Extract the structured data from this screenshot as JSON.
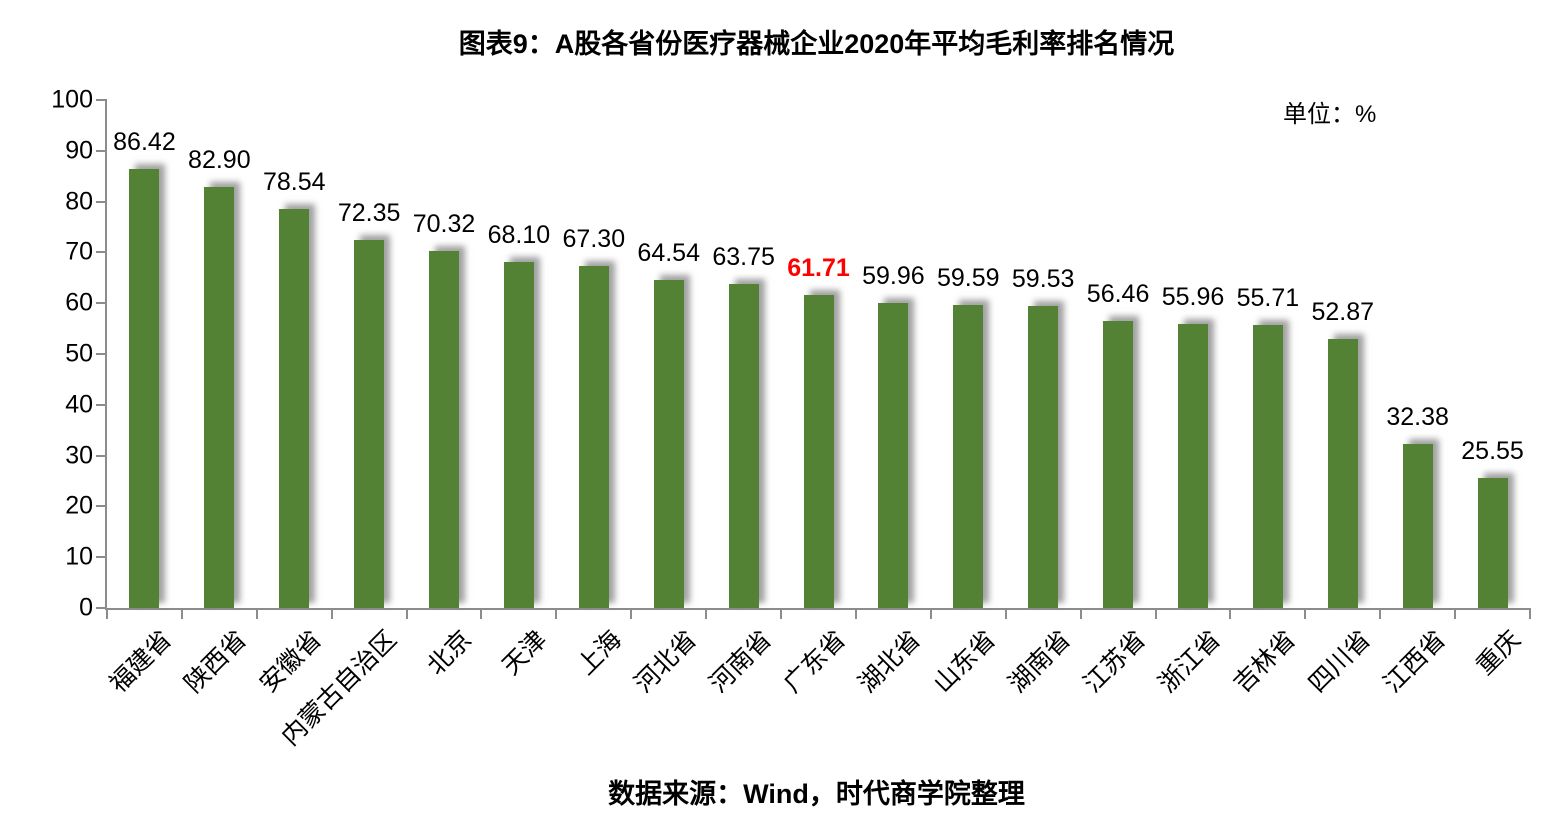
{
  "title": "图表9：A股各省份医疗器械企业2020年平均毛利率排名情况",
  "unit_label": "单位：%",
  "source": "数据来源：Wind，时代商学院整理",
  "colors": {
    "bar": "#548235",
    "highlight_label": "#FF0000",
    "label": "#000000",
    "axis": "#8c8c8c"
  },
  "chart_data": {
    "type": "bar",
    "title": "图表9：A股各省份医疗器械企业2020年平均毛利率排名情况",
    "unit": "单位：%",
    "categories": [
      "福建省",
      "陕西省",
      "安徽省",
      "内蒙古自治区",
      "北京",
      "天津",
      "上海",
      "河北省",
      "河南省",
      "广东省",
      "湖北省",
      "山东省",
      "湖南省",
      "江苏省",
      "浙江省",
      "吉林省",
      "四川省",
      "江西省",
      "重庆"
    ],
    "values": [
      86.42,
      82.9,
      78.54,
      72.35,
      70.32,
      68.1,
      67.3,
      64.54,
      63.75,
      61.71,
      59.96,
      59.59,
      59.53,
      56.46,
      55.96,
      55.71,
      52.87,
      32.38,
      25.55
    ],
    "data_labels": [
      "86.42",
      "82.90",
      "78.54",
      "72.35",
      "70.32",
      "68.10",
      "67.30",
      "64.54",
      "63.75",
      "61.71",
      "59.96",
      "59.59",
      "59.53",
      "56.46",
      "55.96",
      "55.71",
      "52.87",
      "32.38",
      "25.55"
    ],
    "highlight_index": 9,
    "ylabel": "",
    "xlabel": "",
    "ylim": [
      0,
      100
    ],
    "ytick_step": 10,
    "ytick_labels": [
      "0",
      "10",
      "20",
      "30",
      "40",
      "50",
      "60",
      "70",
      "80",
      "90",
      "100"
    ],
    "grid": false,
    "legend": false,
    "label_rotation_deg": -45
  }
}
